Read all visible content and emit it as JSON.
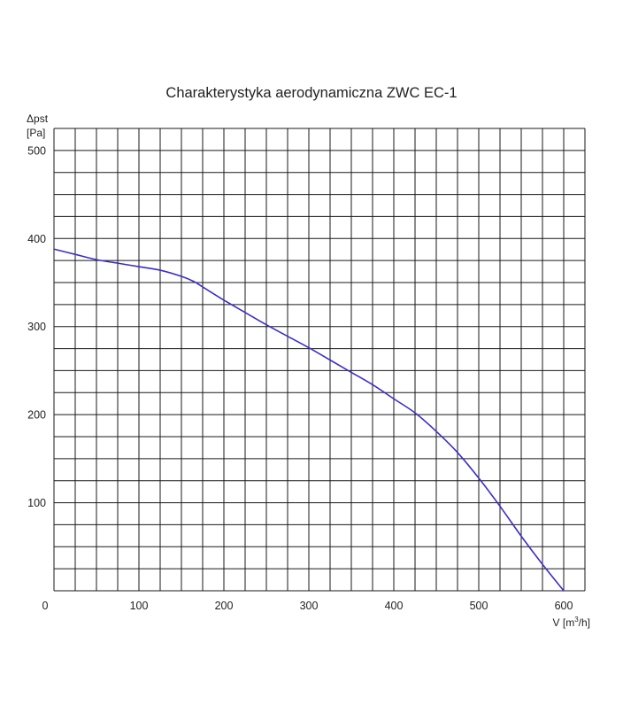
{
  "chart_data": {
    "type": "line",
    "title": "Charakterystyka aerodynamiczna ZWC EC-1",
    "xlabel": "V [m³/h]",
    "ylabel": "Δpst [Pa]",
    "xlim": [
      0,
      625
    ],
    "ylim": [
      0,
      525
    ],
    "xticks": [
      0,
      100,
      200,
      300,
      400,
      500,
      600
    ],
    "yticks": [
      100,
      200,
      300,
      400,
      500
    ],
    "grid": true,
    "grid_step_x": 25,
    "grid_step_y": 25,
    "series_color": "#3a2fc4",
    "series": [
      {
        "x": [
          0,
          25,
          50,
          75,
          100,
          125,
          150,
          165,
          175,
          200,
          225,
          250,
          275,
          300,
          325,
          350,
          375,
          400,
          425,
          450,
          475,
          500,
          525,
          550,
          575,
          600
        ],
        "values": [
          388,
          382,
          376,
          372,
          368,
          364,
          357,
          351,
          345,
          330,
          316,
          302,
          289,
          276,
          262,
          248,
          234,
          218,
          202,
          181,
          157,
          128,
          96,
          62,
          30,
          0
        ]
      }
    ]
  }
}
